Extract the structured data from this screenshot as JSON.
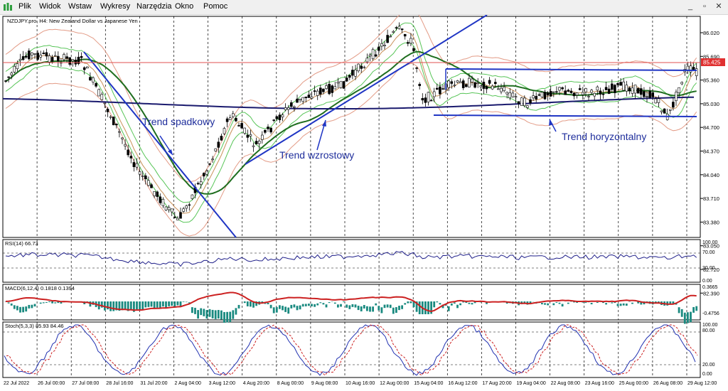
{
  "menu": {
    "items": [
      "Plik",
      "Widok",
      "Wstaw",
      "Wykresy",
      "Narzędzia",
      "Okno",
      "Pomoc"
    ],
    "window_buttons": [
      "_",
      "▫",
      "✕"
    ]
  },
  "chart": {
    "title": "NZDJPY.pro, H4:  New Zealand Dollar vs Japanese Yen",
    "current_price_label": "85.425",
    "price_ticks": [
      "86.020",
      "85.690",
      "85.360",
      "85.030",
      "84.700",
      "84.370",
      "84.040",
      "83.710",
      "83.380",
      "83.050",
      "82.720",
      "82.390"
    ],
    "time_ticks": [
      "22 Jul 2022",
      "26 Jul 00:00",
      "27 Jul 08:00",
      "28 Jul 16:00",
      "31 Jul 20:00",
      "2 Aug 04:00",
      "3 Aug 12:00",
      "4 Aug 20:00",
      "8 Aug 00:00",
      "9 Aug 08:00",
      "10 Aug 16:00",
      "12 Aug 00:00",
      "15 Aug 04:00",
      "16 Aug 12:00",
      "17 Aug 20:00",
      "19 Aug 04:00",
      "22 Aug 08:00",
      "23 Aug 16:00",
      "25 Aug 00:00",
      "26 Aug 08:00",
      "29 Aug 12:00"
    ],
    "annotations": {
      "trend_down": "Trend spadkowy",
      "trend_up": "Trend wzrostowy",
      "trend_horizontal": "Trend horyzontalny"
    },
    "colors": {
      "bull_candle": "#ffffff",
      "bear_candle": "#000000",
      "bands": "#e39b86",
      "ma_light": "#58c558",
      "ma_dark": "#1f6e1f",
      "ma_navy": "#1a1a6e",
      "trendline": "#1f35c4",
      "price_line": "#e05050",
      "price_label_bg": "#e03030"
    }
  },
  "rsi": {
    "label": "RSI(14) 66.73",
    "ticks": [
      "100.00",
      "70.00",
      "30.00",
      "0.00"
    ],
    "color": "#20208a"
  },
  "macd": {
    "label": "MACD(6,12,4) 0.1818 0.1394",
    "ticks": [
      "0.3665",
      "-0.4756"
    ],
    "hist_color": "#1a8a80",
    "signal_color": "#cc2020"
  },
  "stoch": {
    "label": "Stoch(5,3,3) 85.93 84.46",
    "ticks": [
      "100.00",
      "80.00",
      "20.00",
      "0.00"
    ],
    "main_color": "#2030b0",
    "signal_color": "#cc2020"
  }
}
